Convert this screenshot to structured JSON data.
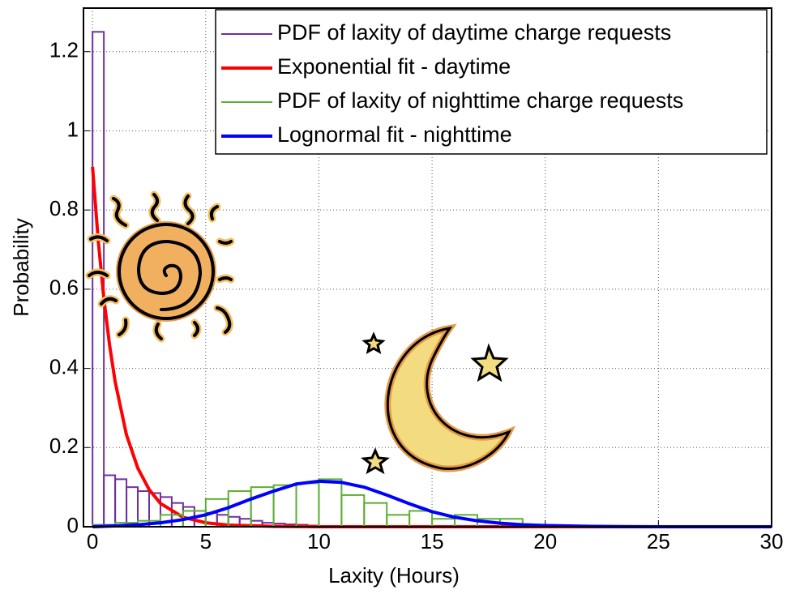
{
  "chart_data": {
    "type": "histogram",
    "xlabel": "Laxity (Hours)",
    "ylabel": "Probability",
    "xlim": [
      -0.4,
      30
    ],
    "ylim": [
      0,
      1.31
    ],
    "xticks": [
      0,
      5,
      10,
      15,
      20,
      25,
      30
    ],
    "yticks": [
      0,
      0.2,
      0.4,
      0.6,
      0.8,
      1,
      1.2
    ],
    "grid": true,
    "legend": "upper right",
    "series": [
      {
        "name": "PDF of laxity of daytime charge requests",
        "type": "histogram",
        "color": "#7030a0",
        "bins": [
          0,
          0.5,
          1,
          1.5,
          2,
          2.5,
          3,
          3.5,
          4,
          4.5,
          5,
          5.5,
          6,
          6.5,
          7,
          7.5,
          8,
          8.5,
          9,
          9.5,
          10
        ],
        "values": [
          1.25,
          0.13,
          0.12,
          0.1,
          0.09,
          0.085,
          0.075,
          0.06,
          0.05,
          0.04,
          0.035,
          0.03,
          0.025,
          0.02,
          0.015,
          0.01,
          0.008,
          0.006,
          0.005,
          0.003
        ]
      },
      {
        "name": "Exponential fit - daytime",
        "type": "line",
        "color": "#ff0000",
        "x": [
          0,
          0.25,
          0.5,
          0.75,
          1,
          1.5,
          2,
          2.5,
          3,
          4,
          5,
          6,
          8,
          10,
          15,
          20,
          25,
          30
        ],
        "values": [
          0.909,
          0.724,
          0.577,
          0.46,
          0.366,
          0.232,
          0.148,
          0.094,
          0.059,
          0.024,
          0.01,
          0.004,
          0.001,
          0,
          0,
          0,
          0,
          0
        ]
      },
      {
        "name": "PDF of laxity of nighttime charge requests",
        "type": "histogram",
        "color": "#5cb030",
        "bins": [
          0,
          1,
          2,
          3,
          4,
          5,
          6,
          7,
          8,
          9,
          10,
          11,
          12,
          13,
          14,
          15,
          16,
          17,
          18,
          19
        ],
        "values": [
          0.005,
          0.01,
          0.015,
          0.03,
          0.04,
          0.07,
          0.09,
          0.1,
          0.105,
          0.11,
          0.12,
          0.08,
          0.06,
          0.03,
          0.04,
          0.02,
          0.03,
          0.02,
          0.02
        ]
      },
      {
        "name": "Lognormal fit - nighttime",
        "type": "line",
        "color": "#0000ff",
        "x": [
          0,
          1,
          2,
          3,
          4,
          5,
          6,
          7,
          8,
          9,
          10,
          11,
          12,
          13,
          14,
          15,
          16,
          17,
          18,
          19,
          20,
          22,
          25,
          30
        ],
        "values": [
          0,
          0.002,
          0.005,
          0.01,
          0.018,
          0.03,
          0.048,
          0.07,
          0.09,
          0.108,
          0.115,
          0.112,
          0.1,
          0.08,
          0.058,
          0.038,
          0.024,
          0.015,
          0.009,
          0.005,
          0.003,
          0.001,
          0,
          0
        ]
      }
    ]
  }
}
